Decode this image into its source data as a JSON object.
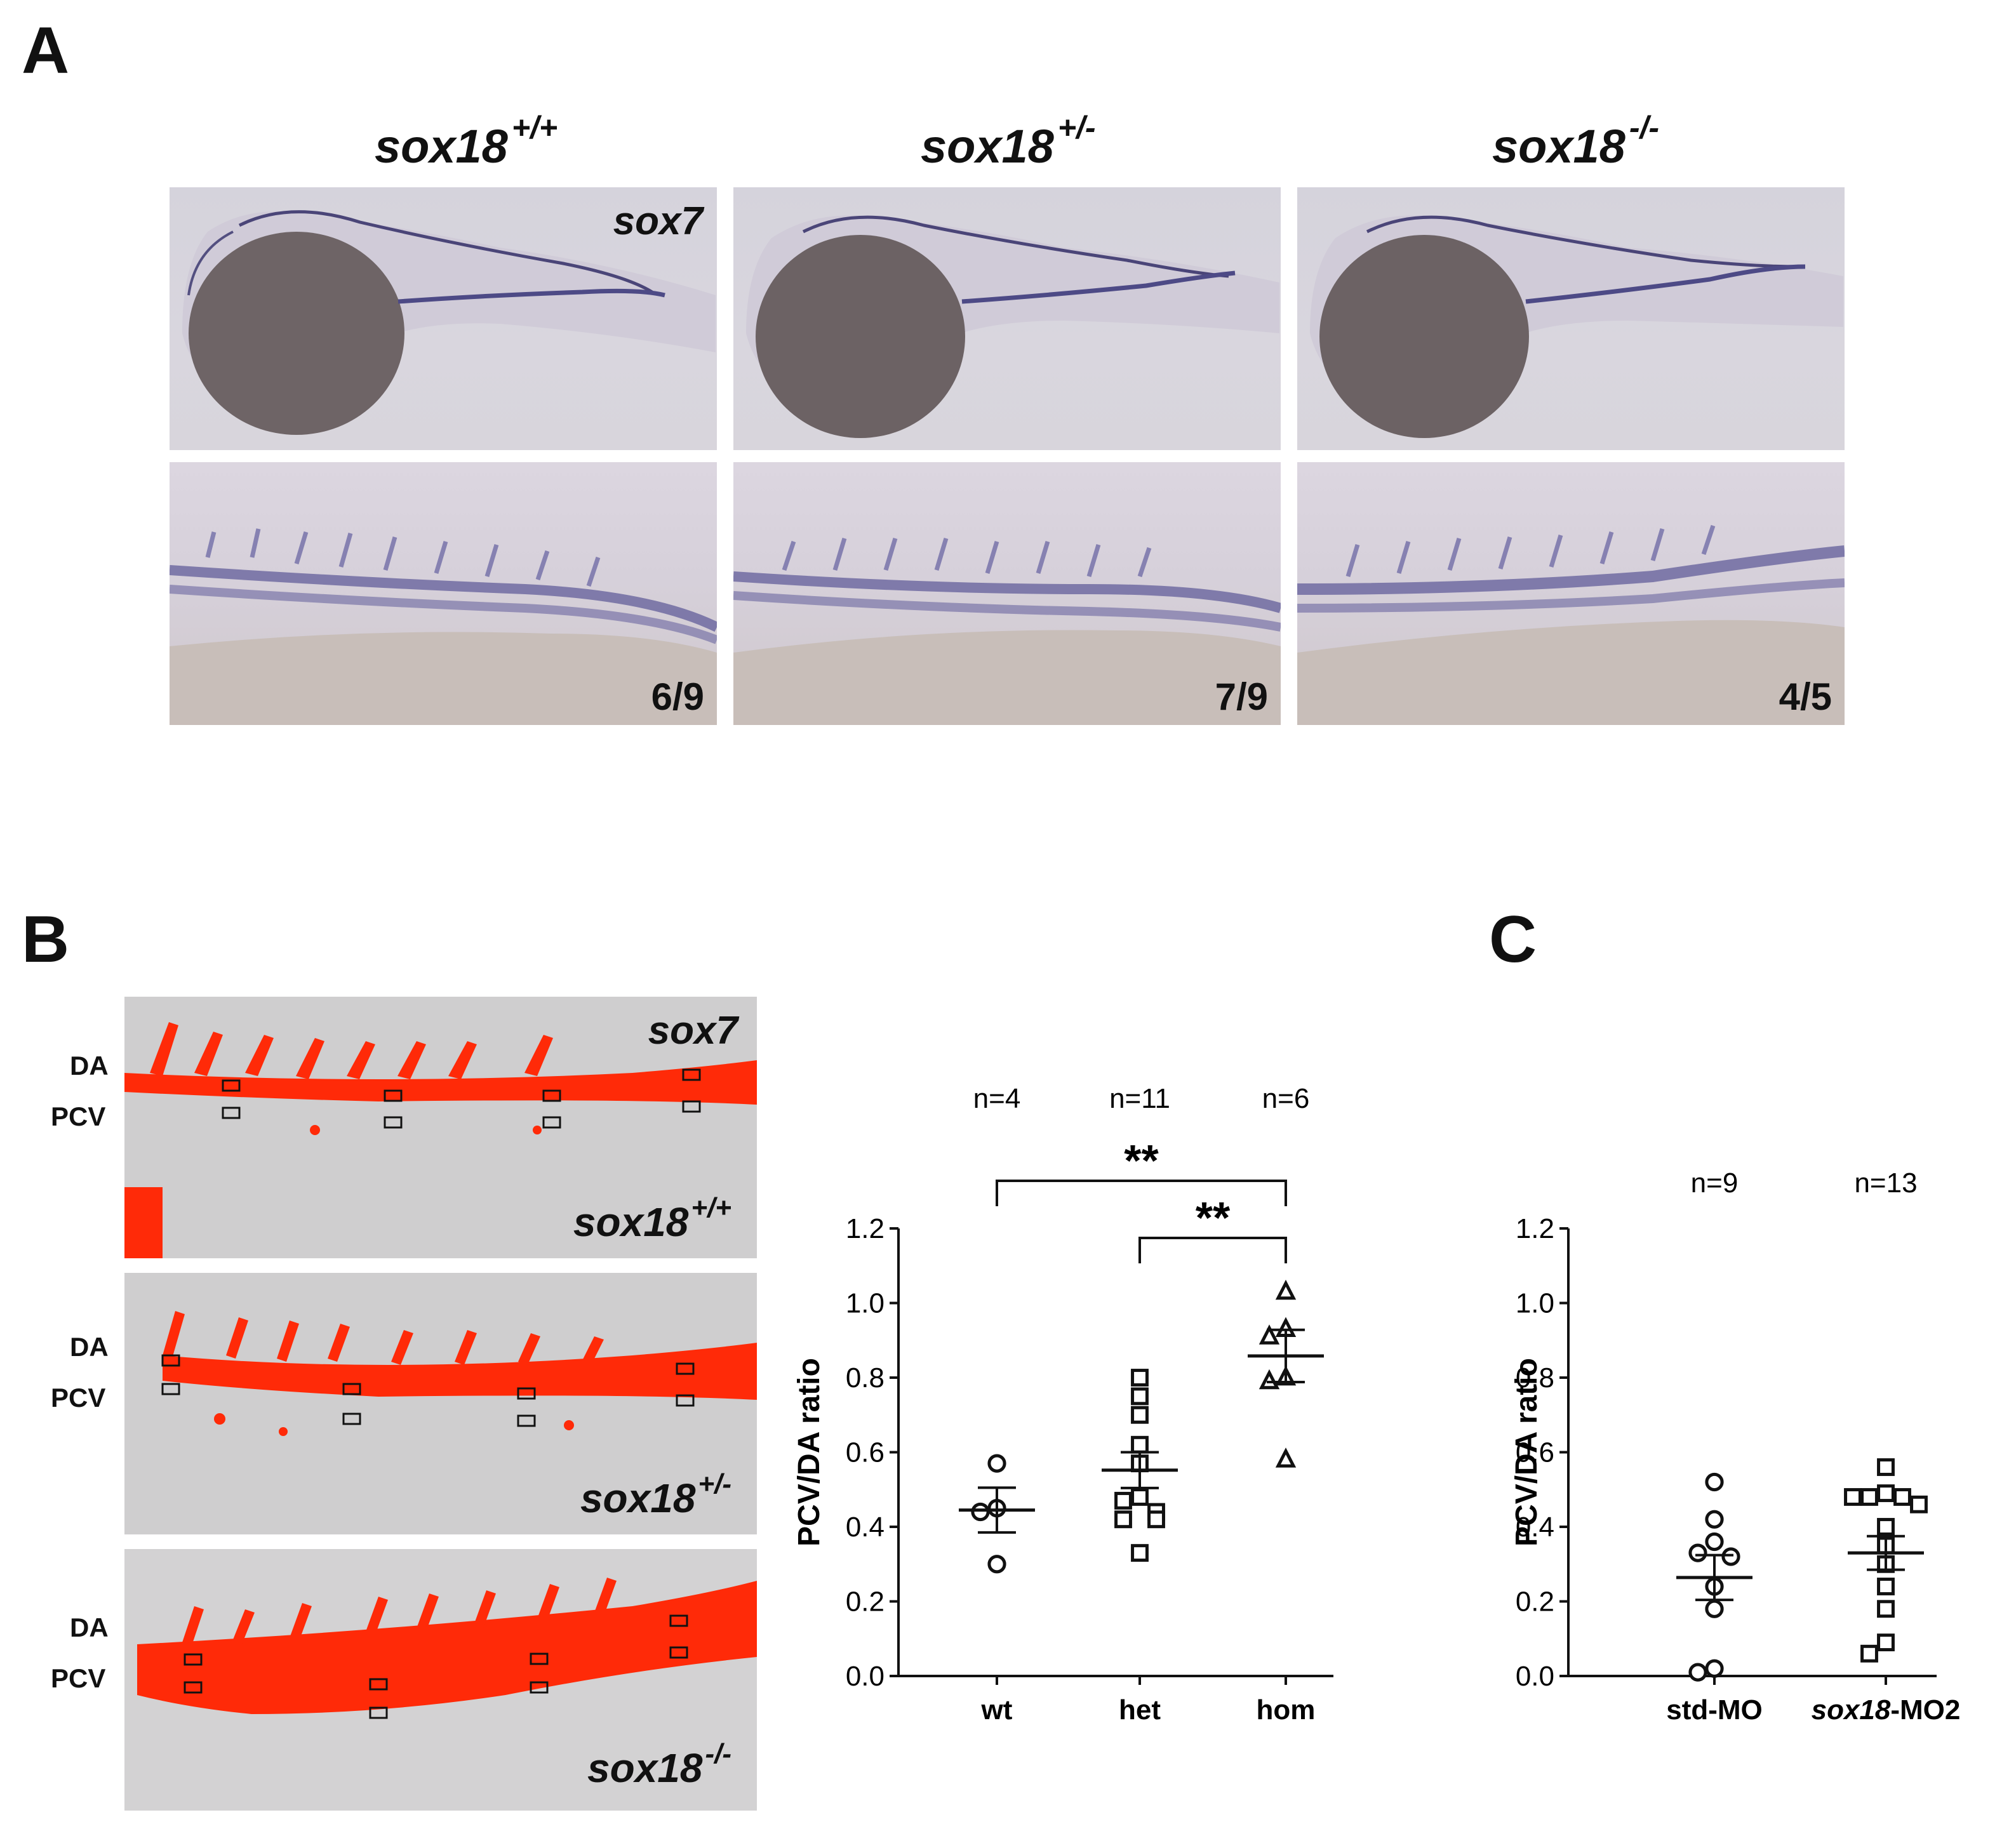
{
  "panels": {
    "a": {
      "letter": "A",
      "genotypes": [
        {
          "base": "sox18",
          "sup": "+/+"
        },
        {
          "base": "sox18",
          "sup": "+/-"
        },
        {
          "base": "sox18",
          "sup": "-/-"
        }
      ],
      "gene": "sox7",
      "fractions": [
        "6/9",
        "7/9",
        "4/5"
      ]
    },
    "b": {
      "letter": "B",
      "gene": "sox7",
      "vessel_labels": {
        "da": "DA",
        "pcv": "PCV"
      },
      "genotypes": [
        {
          "base": "sox18",
          "sup": "+/+"
        },
        {
          "base": "sox18",
          "sup": "+/-"
        },
        {
          "base": "sox18",
          "sup": "-/-"
        }
      ]
    },
    "c": {
      "letter": "C"
    }
  },
  "chart_data": [
    {
      "type": "scatter",
      "ylabel": "PCV/DA ratio",
      "ylim": [
        0,
        1.2
      ],
      "yticks": [
        "0.0",
        "0.2",
        "0.4",
        "0.6",
        "0.8",
        "1.0",
        "1.2"
      ],
      "categories": [
        "wt",
        "het",
        "hom"
      ],
      "n_labels": [
        "n=4",
        "n=11",
        "n=6"
      ],
      "markers": [
        "circle",
        "square",
        "triangle"
      ],
      "points": [
        [
          0.57,
          0.45,
          0.44,
          0.3
        ],
        [
          0.8,
          0.75,
          0.7,
          0.62,
          0.57,
          0.48,
          0.47,
          0.44,
          0.42,
          0.42,
          0.33
        ],
        [
          1.03,
          0.93,
          0.91,
          0.8,
          0.79,
          0.58
        ]
      ],
      "means": [
        0.445,
        0.552,
        0.858
      ],
      "sem": [
        0.06,
        0.048,
        0.07
      ],
      "significance": [
        {
          "from": "wt",
          "to": "hom",
          "label": "**"
        },
        {
          "from": "het",
          "to": "hom",
          "label": "**"
        }
      ]
    },
    {
      "type": "scatter",
      "ylabel": "PCV/DA ratio",
      "ylim": [
        0,
        1.2
      ],
      "yticks": [
        "0.0",
        "0.2",
        "0.4",
        "0.6",
        "0.8",
        "1.0",
        "1.2"
      ],
      "categories": [
        "std-MO",
        "-MO2"
      ],
      "category_italic_prefix": [
        "",
        "sox18"
      ],
      "n_labels": [
        "n=9",
        "n=13"
      ],
      "markers": [
        "circle",
        "square"
      ],
      "points": [
        [
          0.52,
          0.42,
          0.36,
          0.33,
          0.32,
          0.24,
          0.18,
          0.02,
          0.01
        ],
        [
          0.56,
          0.49,
          0.48,
          0.48,
          0.48,
          0.46,
          0.4,
          0.35,
          0.3,
          0.24,
          0.18,
          0.09,
          0.06
        ]
      ],
      "means": [
        0.264,
        0.33
      ],
      "sem": [
        0.06,
        0.045
      ]
    }
  ]
}
